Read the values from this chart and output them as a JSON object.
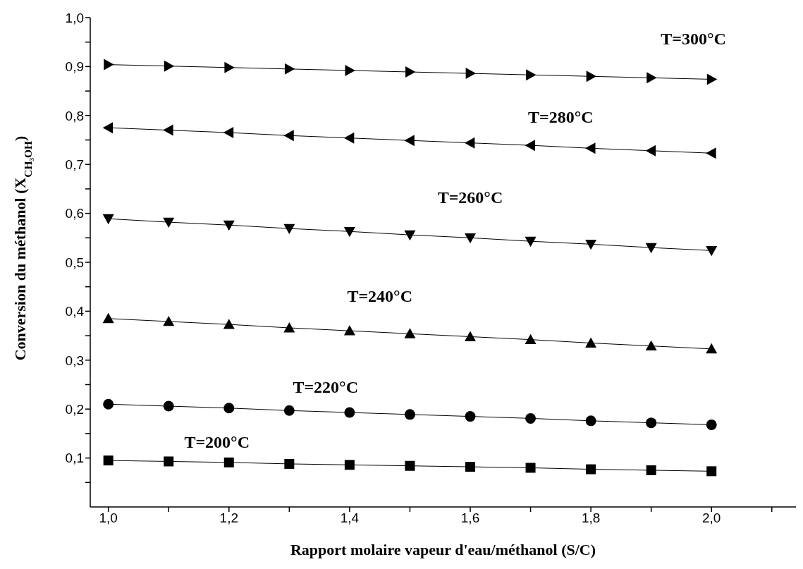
{
  "chart_data": {
    "type": "line",
    "xlabel": "Rapport molaire vapeur d'eau/méthanol (S/C)",
    "ylabel": "Conversion du méthanol (X$_{CH₃OH}$)",
    "x": [
      1.0,
      1.1,
      1.2,
      1.3,
      1.4,
      1.5,
      1.6,
      1.7,
      1.8,
      1.9,
      2.0
    ],
    "series": [
      {
        "name": "T=200°C",
        "color": "#000000",
        "marker": "square",
        "values": [
          0.095,
          0.093,
          0.091,
          0.088,
          0.086,
          0.084,
          0.082,
          0.08,
          0.077,
          0.075,
          0.073
        ]
      },
      {
        "name": "T=220°C",
        "color": "#000000",
        "marker": "circle",
        "values": [
          0.21,
          0.206,
          0.202,
          0.197,
          0.193,
          0.189,
          0.185,
          0.181,
          0.176,
          0.172,
          0.168
        ]
      },
      {
        "name": "T=240°C",
        "color": "#000000",
        "marker": "triangle",
        "values": [
          0.385,
          0.379,
          0.373,
          0.366,
          0.36,
          0.354,
          0.348,
          0.342,
          0.335,
          0.329,
          0.323
        ]
      },
      {
        "name": "T=260°C",
        "color": "#000000",
        "marker": "triangle-down",
        "values": [
          0.589,
          0.582,
          0.576,
          0.569,
          0.563,
          0.556,
          0.55,
          0.543,
          0.537,
          0.53,
          0.524
        ]
      },
      {
        "name": "T=280°C",
        "color": "#000000",
        "marker": "triangle-left",
        "values": [
          0.775,
          0.77,
          0.765,
          0.759,
          0.754,
          0.749,
          0.744,
          0.739,
          0.733,
          0.728,
          0.723
        ]
      },
      {
        "name": "T=300°C",
        "color": "#000000",
        "marker": "triangle-right",
        "values": [
          0.904,
          0.901,
          0.898,
          0.895,
          0.892,
          0.889,
          0.886,
          0.883,
          0.88,
          0.877,
          0.874
        ]
      }
    ],
    "xlim": [
      0.97,
      2.14
    ],
    "xticks": [
      {
        "value": 1.0,
        "label": "1,0"
      },
      {
        "value": 1.1,
        "label": null
      },
      {
        "value": 1.2,
        "label": "1,2"
      },
      {
        "value": 1.3,
        "label": null
      },
      {
        "value": 1.4,
        "label": "1,4"
      },
      {
        "value": 1.5,
        "label": null
      },
      {
        "value": 1.6,
        "label": "1,6"
      },
      {
        "value": 1.7,
        "label": null
      },
      {
        "value": 1.8,
        "label": "1,8"
      },
      {
        "value": 1.9,
        "label": null
      },
      {
        "value": 2.0,
        "label": "2,0"
      },
      {
        "value": 2.1,
        "label": null
      }
    ],
    "ylim": [
      0,
      1
    ],
    "yticks": [
      {
        "value": 0.05,
        "label": null
      },
      {
        "value": 0.1,
        "label": "0,1"
      },
      {
        "value": 0.15,
        "label": null
      },
      {
        "value": 0.2,
        "label": "0,2"
      },
      {
        "value": 0.25,
        "label": null
      },
      {
        "value": 0.3,
        "label": "0,3"
      },
      {
        "value": 0.35,
        "label": null
      },
      {
        "value": 0.4,
        "label": "0,4"
      },
      {
        "value": 0.45,
        "label": null
      },
      {
        "value": 0.5,
        "label": "0,5"
      },
      {
        "value": 0.55,
        "label": null
      },
      {
        "value": 0.6,
        "label": "0,6"
      },
      {
        "value": 0.65,
        "label": null
      },
      {
        "value": 0.7,
        "label": "0,7"
      },
      {
        "value": 0.75,
        "label": null
      },
      {
        "value": 0.8,
        "label": "0,8"
      },
      {
        "value": 0.85,
        "label": null
      },
      {
        "value": 0.9,
        "label": "0,9"
      },
      {
        "value": 0.95,
        "label": null
      },
      {
        "value": 1.0,
        "label": "1,0"
      }
    ],
    "grid": false,
    "legend": false
  }
}
